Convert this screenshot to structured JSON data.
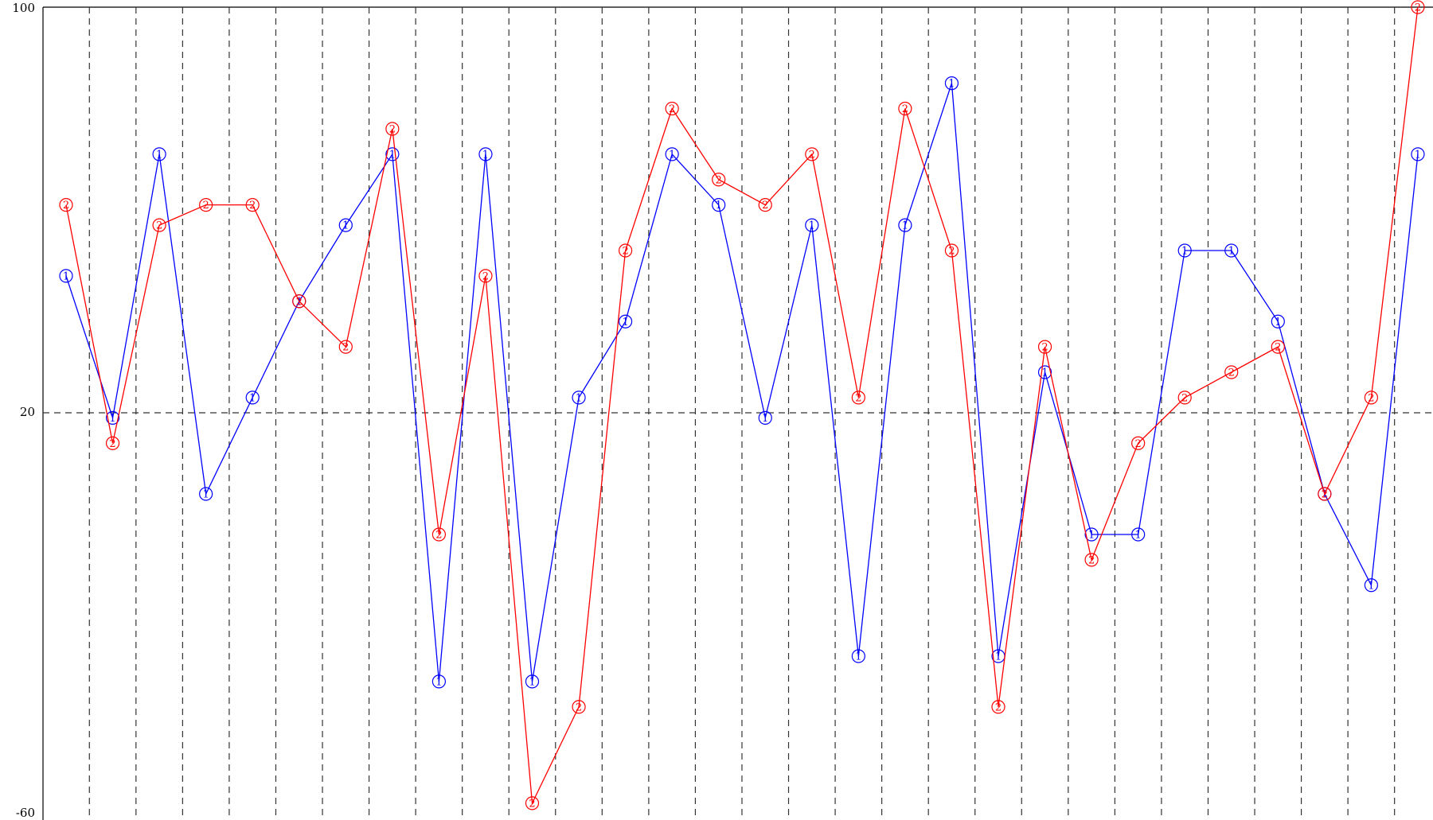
{
  "chart_data": {
    "type": "line",
    "categories": [
      null,
      null,
      null,
      null,
      null,
      null,
      null,
      null,
      null,
      null,
      null,
      null,
      null,
      null,
      null,
      null,
      null,
      null,
      null,
      null,
      null,
      null,
      null,
      null,
      null,
      null,
      null,
      null,
      null,
      null
    ],
    "series": [
      {
        "marker": "1",
        "color": "#0000ff",
        "values": [
          47,
          19,
          71,
          4,
          23,
          42,
          57,
          71,
          -33,
          71,
          -33,
          23,
          38,
          71,
          61,
          19,
          57,
          -28,
          57,
          85,
          -28,
          28,
          -4,
          -4,
          52,
          52,
          38,
          4,
          -14,
          71
        ]
      },
      {
        "marker": "2",
        "color": "#ff0000",
        "values": [
          61,
          14,
          57,
          61,
          61,
          42,
          33,
          76,
          -4,
          47,
          -57,
          -38,
          52,
          80,
          66,
          61,
          71,
          23,
          80,
          52,
          -38,
          33,
          -9,
          14,
          23,
          28,
          33,
          4,
          23,
          100
        ]
      }
    ],
    "ylim": [
      -60,
      100
    ],
    "yticks": [
      -60,
      20,
      100
    ],
    "grid": true
  }
}
